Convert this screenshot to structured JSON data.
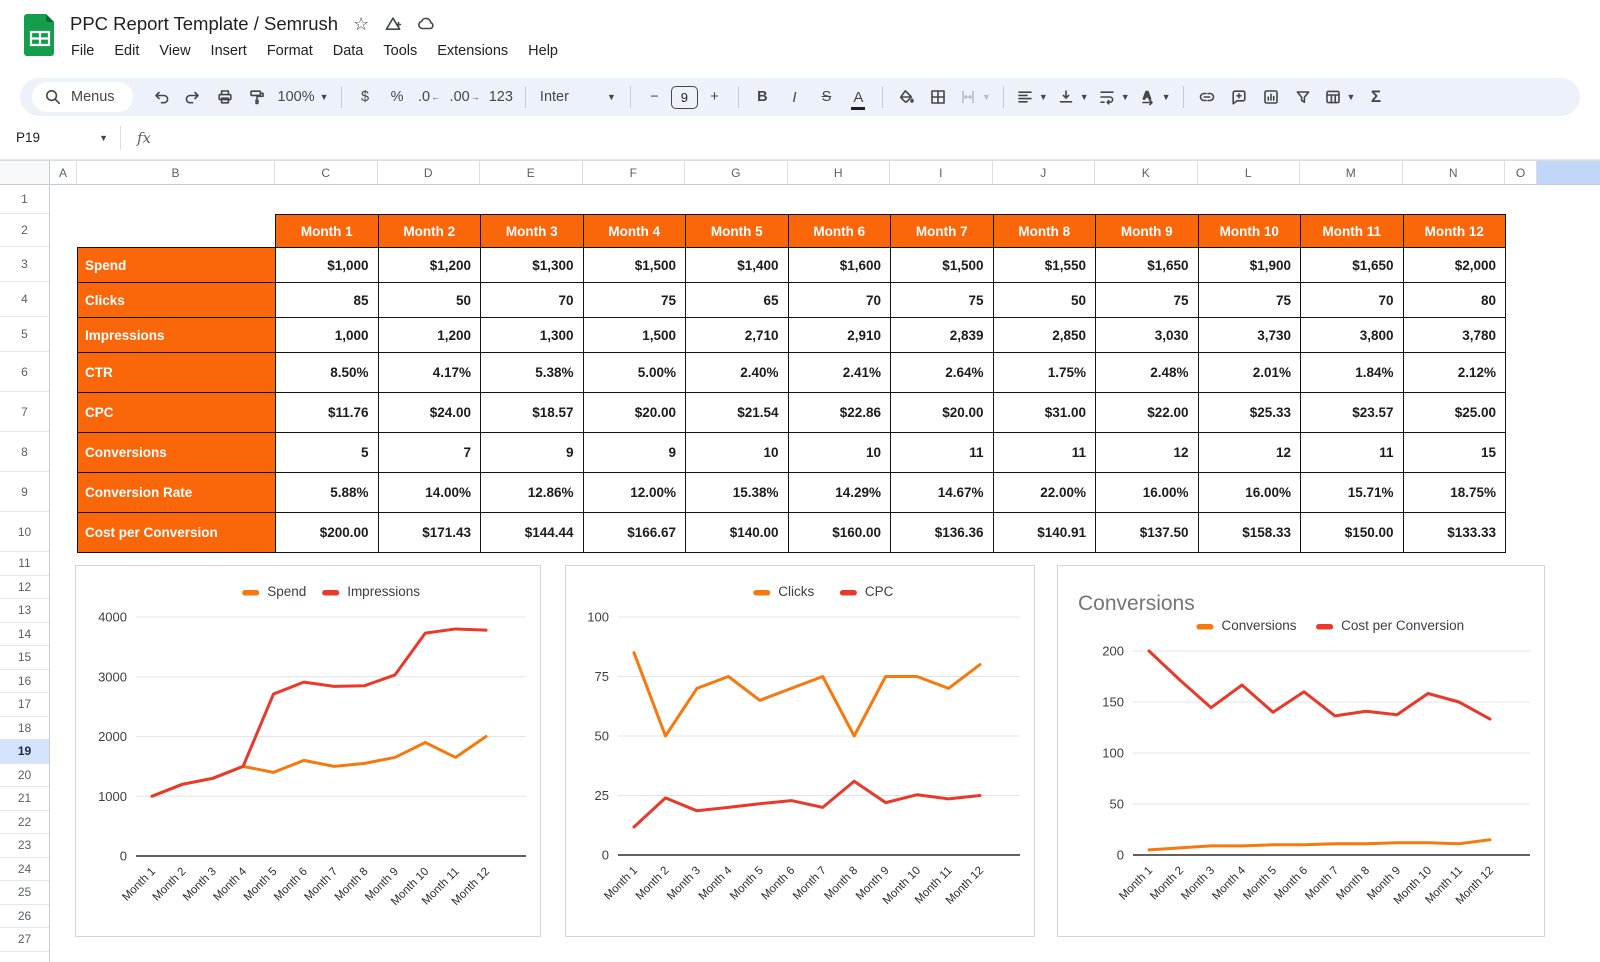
{
  "app": {
    "title": "PPC Report Template / Semrush",
    "menus": [
      "File",
      "Edit",
      "View",
      "Insert",
      "Format",
      "Data",
      "Tools",
      "Extensions",
      "Help"
    ]
  },
  "toolbar": {
    "menus_label": "Menus",
    "zoom": "100%",
    "format_currency": "$",
    "format_percent": "%",
    "decrease_decimals": ".0",
    "increase_decimals": ".00",
    "more_formats": "123",
    "font": "Inter",
    "font_size": "9",
    "bold": "B",
    "italic": "I",
    "strikethrough": "S",
    "text_color": "A",
    "sum": "Σ"
  },
  "formula_bar": {
    "name_box": "P19",
    "fx": "fx"
  },
  "grid": {
    "columns": [
      "A",
      "B",
      "C",
      "D",
      "E",
      "F",
      "G",
      "H",
      "I",
      "J",
      "K",
      "L",
      "M",
      "N",
      "O"
    ],
    "rows": [
      "1",
      "2",
      "3",
      "4",
      "5",
      "6",
      "7",
      "8",
      "9",
      "10",
      "11",
      "12",
      "13",
      "14",
      "15",
      "16",
      "17",
      "18",
      "19",
      "20",
      "21",
      "22",
      "23",
      "24",
      "25",
      "26",
      "27"
    ],
    "selected_row": "19",
    "selected_cell": "P19"
  },
  "table": {
    "months": [
      "Month 1",
      "Month 2",
      "Month 3",
      "Month 4",
      "Month 5",
      "Month 6",
      "Month 7",
      "Month 8",
      "Month 9",
      "Month 10",
      "Month 11",
      "Month 12"
    ],
    "rows": [
      {
        "label": "Spend",
        "values": [
          "$1,000",
          "$1,200",
          "$1,300",
          "$1,500",
          "$1,400",
          "$1,600",
          "$1,500",
          "$1,550",
          "$1,650",
          "$1,900",
          "$1,650",
          "$2,000"
        ]
      },
      {
        "label": "Clicks",
        "values": [
          "85",
          "50",
          "70",
          "75",
          "65",
          "70",
          "75",
          "50",
          "75",
          "75",
          "70",
          "80"
        ]
      },
      {
        "label": "Impressions",
        "values": [
          "1,000",
          "1,200",
          "1,300",
          "1,500",
          "2,710",
          "2,910",
          "2,839",
          "2,850",
          "3,030",
          "3,730",
          "3,800",
          "3,780"
        ]
      },
      {
        "label": "CTR",
        "values": [
          "8.50%",
          "4.17%",
          "5.38%",
          "5.00%",
          "2.40%",
          "2.41%",
          "2.64%",
          "1.75%",
          "2.48%",
          "2.01%",
          "1.84%",
          "2.12%"
        ]
      },
      {
        "label": "CPC",
        "values": [
          "$11.76",
          "$24.00",
          "$18.57",
          "$20.00",
          "$21.54",
          "$22.86",
          "$20.00",
          "$31.00",
          "$22.00",
          "$25.33",
          "$23.57",
          "$25.00"
        ]
      },
      {
        "label": "Conversions",
        "values": [
          "5",
          "7",
          "9",
          "9",
          "10",
          "10",
          "11",
          "11",
          "12",
          "12",
          "11",
          "15"
        ]
      },
      {
        "label": "Conversion Rate",
        "values": [
          "5.88%",
          "14.00%",
          "12.86%",
          "12.00%",
          "15.38%",
          "14.29%",
          "14.67%",
          "22.00%",
          "16.00%",
          "16.00%",
          "15.71%",
          "18.75%"
        ]
      },
      {
        "label": "Cost per Conversion",
        "values": [
          "$200.00",
          "$171.43",
          "$144.44",
          "$166.67",
          "$140.00",
          "$160.00",
          "$136.36",
          "$140.91",
          "$137.50",
          "$158.33",
          "$150.00",
          "$133.33"
        ]
      }
    ]
  },
  "chart_data": [
    {
      "type": "line",
      "title": "",
      "categories": [
        "Month 1",
        "Month 2",
        "Month 3",
        "Month 4",
        "Month 5",
        "Month 6",
        "Month 7",
        "Month 8",
        "Month 9",
        "Month 10",
        "Month 11",
        "Month 12"
      ],
      "series": [
        {
          "name": "Spend",
          "color": "#f5790d",
          "values": [
            1000,
            1200,
            1300,
            1500,
            1400,
            1600,
            1500,
            1550,
            1650,
            1900,
            1650,
            2000
          ]
        },
        {
          "name": "Impressions",
          "color": "#e8392a",
          "values": [
            1000,
            1200,
            1300,
            1500,
            2710,
            2910,
            2839,
            2850,
            3030,
            3730,
            3800,
            3780
          ]
        }
      ],
      "xlabel": "",
      "ylabel": "",
      "ylim": [
        0,
        4000
      ],
      "yticks": [
        0,
        1000,
        2000,
        3000,
        4000
      ],
      "grid": true,
      "legend_position": "top"
    },
    {
      "type": "line",
      "title": "",
      "categories": [
        "Month 1",
        "Month 2",
        "Month 3",
        "Month 4",
        "Month 5",
        "Month 6",
        "Month 7",
        "Month 8",
        "Month 9",
        "Month 10",
        "Month 11",
        "Month 12"
      ],
      "series": [
        {
          "name": "Clicks",
          "color": "#f5790d",
          "values": [
            85,
            50,
            70,
            75,
            65,
            70,
            75,
            50,
            75,
            75,
            70,
            80
          ]
        },
        {
          "name": "CPC",
          "color": "#e8392a",
          "values": [
            11.76,
            24,
            18.57,
            20,
            21.54,
            22.86,
            20,
            31,
            22,
            25.33,
            23.57,
            25
          ]
        }
      ],
      "xlabel": "",
      "ylabel": "",
      "ylim": [
        0,
        100
      ],
      "yticks": [
        0,
        25,
        50,
        75,
        100
      ],
      "grid": true,
      "legend_position": "top"
    },
    {
      "type": "line",
      "title": "Conversions",
      "categories": [
        "Month 1",
        "Month 2",
        "Month 3",
        "Month 4",
        "Month 5",
        "Month 6",
        "Month 7",
        "Month 8",
        "Month 9",
        "Month 10",
        "Month 11",
        "Month 12"
      ],
      "series": [
        {
          "name": "Conversions",
          "color": "#f5790d",
          "values": [
            5,
            7,
            9,
            9,
            10,
            10,
            11,
            11,
            12,
            12,
            11,
            15
          ]
        },
        {
          "name": "Cost per Conversion",
          "color": "#e8392a",
          "values": [
            200,
            171.43,
            144.44,
            166.67,
            140,
            160,
            136.36,
            140.91,
            137.5,
            158.33,
            150,
            133.33
          ]
        }
      ],
      "xlabel": "",
      "ylabel": "",
      "ylim": [
        0,
        200
      ],
      "yticks": [
        0,
        50,
        100,
        150,
        200
      ],
      "grid": true,
      "legend_position": "top"
    }
  ],
  "colors": {
    "table_header": "#fa660a",
    "chart_orange": "#f5790d",
    "chart_red": "#e8392a",
    "selected_row_bg": "#d3e3fd",
    "selected_col_bg": "#c2d7f7",
    "logo_green": "#149e4c",
    "toolbar_bg": "#edf2fa"
  }
}
